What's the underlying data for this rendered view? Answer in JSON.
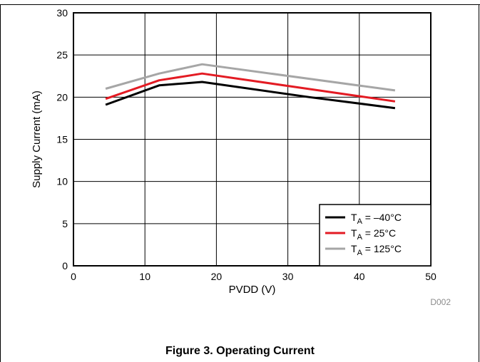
{
  "figure": {
    "caption": "Figure 3. Operating Current",
    "code": "D002"
  },
  "chart_data": {
    "type": "line",
    "title": "",
    "xlabel": "PVDD (V)",
    "ylabel": "Supply Current (mA)",
    "xlim": [
      0,
      50
    ],
    "ylim": [
      0,
      30
    ],
    "xticks": [
      0,
      10,
      20,
      30,
      40,
      50
    ],
    "yticks": [
      0,
      5,
      10,
      15,
      20,
      25,
      30
    ],
    "grid": true,
    "legend_position": "bottom-right",
    "series": [
      {
        "name": "T_A = –40°C",
        "legend_main": "T",
        "legend_sub": "A",
        "legend_rest": " = –40°C",
        "color": "#000000",
        "x": [
          4.5,
          12,
          18,
          33,
          45
        ],
        "y": [
          19.1,
          21.4,
          21.8,
          20.0,
          18.7
        ]
      },
      {
        "name": "T_A = 25°C",
        "legend_main": "T",
        "legend_sub": "A",
        "legend_rest": " = 25°C",
        "color": "#e31b23",
        "x": [
          4.5,
          12,
          18,
          45
        ],
        "y": [
          19.8,
          22.0,
          22.8,
          19.5
        ]
      },
      {
        "name": "T_A = 125°C",
        "legend_main": "T",
        "legend_sub": "A",
        "legend_rest": " = 125°C",
        "color": "#a6a6a6",
        "x": [
          4.5,
          12,
          18,
          45
        ],
        "y": [
          21.0,
          22.8,
          23.9,
          20.8
        ]
      }
    ]
  }
}
